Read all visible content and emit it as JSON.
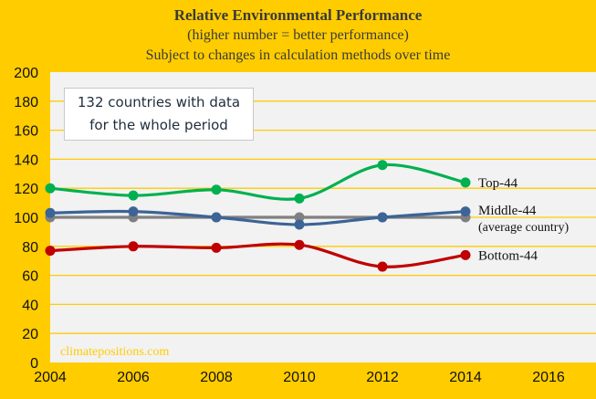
{
  "chart_data": {
    "type": "line",
    "title": "Relative Environmental Performance",
    "subtitle": "(higher  number = better performance)",
    "subtitle2": "Subject to changes in calculation  methods over time",
    "xlabel": "",
    "ylabel": "",
    "x": [
      2004,
      2006,
      2008,
      2010,
      2012,
      2014
    ],
    "xlim": [
      2004,
      2017.3
    ],
    "ylim": [
      0,
      200
    ],
    "xticks": [
      "2004",
      "2006",
      "2008",
      "2010",
      "2012",
      "2014",
      "2016"
    ],
    "yticks": [
      "0",
      "20",
      "40",
      "60",
      "80",
      "100",
      "120",
      "140",
      "160",
      "180",
      "200"
    ],
    "grid": true,
    "series": [
      {
        "name": "Top-44",
        "label": "Top-44",
        "color": "#00b050",
        "values": [
          120,
          115,
          119,
          113,
          136,
          124
        ]
      },
      {
        "name": "Middle-44",
        "label": "Middle-44",
        "sublabel": "(average  country)",
        "color": "#3c6496",
        "values": [
          103,
          104,
          100,
          95,
          100,
          104
        ]
      },
      {
        "name": "Average",
        "label": "",
        "color": "#808080",
        "values": [
          100,
          100,
          100,
          100,
          100,
          100
        ]
      },
      {
        "name": "Bottom-44",
        "label": "Bottom-44",
        "color": "#c00000",
        "values": [
          77,
          80,
          79,
          81,
          66,
          74
        ]
      }
    ],
    "annotations": {
      "note": [
        "132 countries with data",
        "for the whole period"
      ],
      "watermark": "climatepositions.com"
    }
  },
  "colors": {
    "background": "#ffcc00",
    "plot": "#f2f2f2",
    "grid": "#ffcc00",
    "watermark": "#ffcc00"
  }
}
